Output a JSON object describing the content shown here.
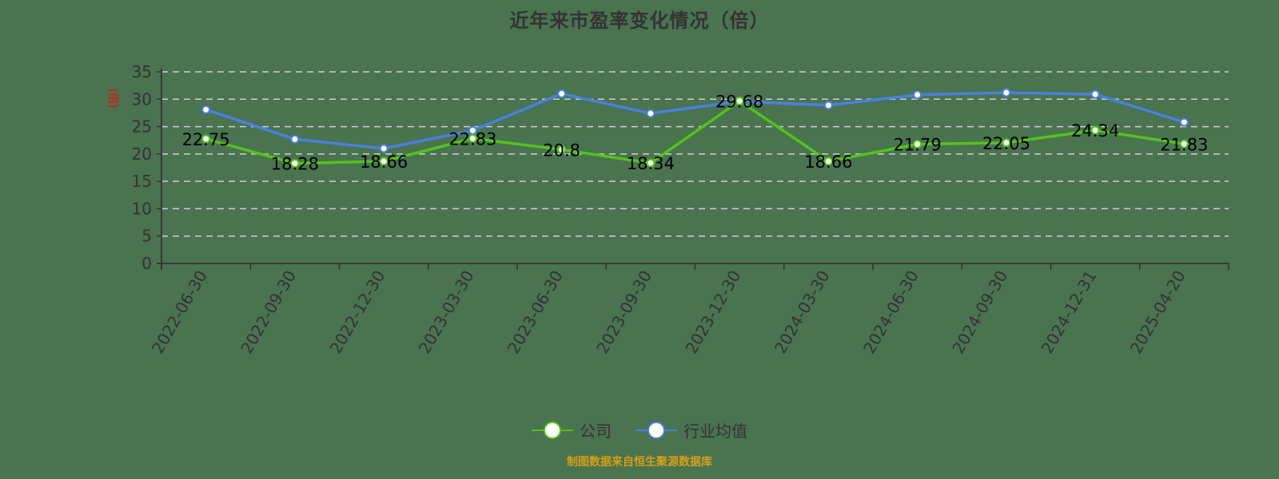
{
  "title": "近年来市盈率变化情况（倍）",
  "source_note": "制图数据来自恒生聚源数据库",
  "colors": {
    "background": "#4a7350",
    "company": "#52c41a",
    "industry": "#4a80e0",
    "grid": "#d0d0d0",
    "axis": "#333333",
    "ylabel": "#ff0000",
    "source": "#d4a017"
  },
  "legend": [
    {
      "label": "公司",
      "color": "#52c41a",
      "icon": "circle-line-icon"
    },
    {
      "label": "行业均值",
      "color": "#4a80e0",
      "icon": "circle-line-icon"
    }
  ],
  "chart_data": {
    "type": "line",
    "title": "近年来市盈率变化情况（倍）",
    "xlabel": "",
    "ylabel": "(倍)",
    "ylim": [
      0,
      35
    ],
    "yticks": [
      0,
      5,
      10,
      15,
      20,
      25,
      30,
      35
    ],
    "grid": true,
    "grid_style": "dashed",
    "legend_position": "bottom",
    "categories": [
      "2022-06-30",
      "2022-09-30",
      "2022-12-30",
      "2023-03-30",
      "2023-06-30",
      "2023-09-30",
      "2023-12-30",
      "2024-03-30",
      "2024-06-30",
      "2024-09-30",
      "2024-12-31",
      "2025-04-20"
    ],
    "series": [
      {
        "name": "公司",
        "color": "#52c41a",
        "values": [
          22.75,
          18.28,
          18.66,
          22.83,
          20.8,
          18.34,
          29.68,
          18.66,
          21.79,
          22.05,
          24.34,
          21.83
        ],
        "labels": [
          "22.75",
          "18.28",
          "18.66",
          "22.83",
          "20.8",
          "18.34",
          "29.68",
          "18.66",
          "21.79",
          "22.05",
          "24.34",
          "21.83"
        ],
        "show_labels": true
      },
      {
        "name": "行业均值",
        "color": "#4a80e0",
        "values": [
          28.1,
          22.7,
          21.0,
          24.3,
          31.0,
          27.4,
          29.6,
          28.9,
          30.8,
          31.2,
          30.9,
          25.8
        ],
        "show_labels": false
      }
    ]
  }
}
